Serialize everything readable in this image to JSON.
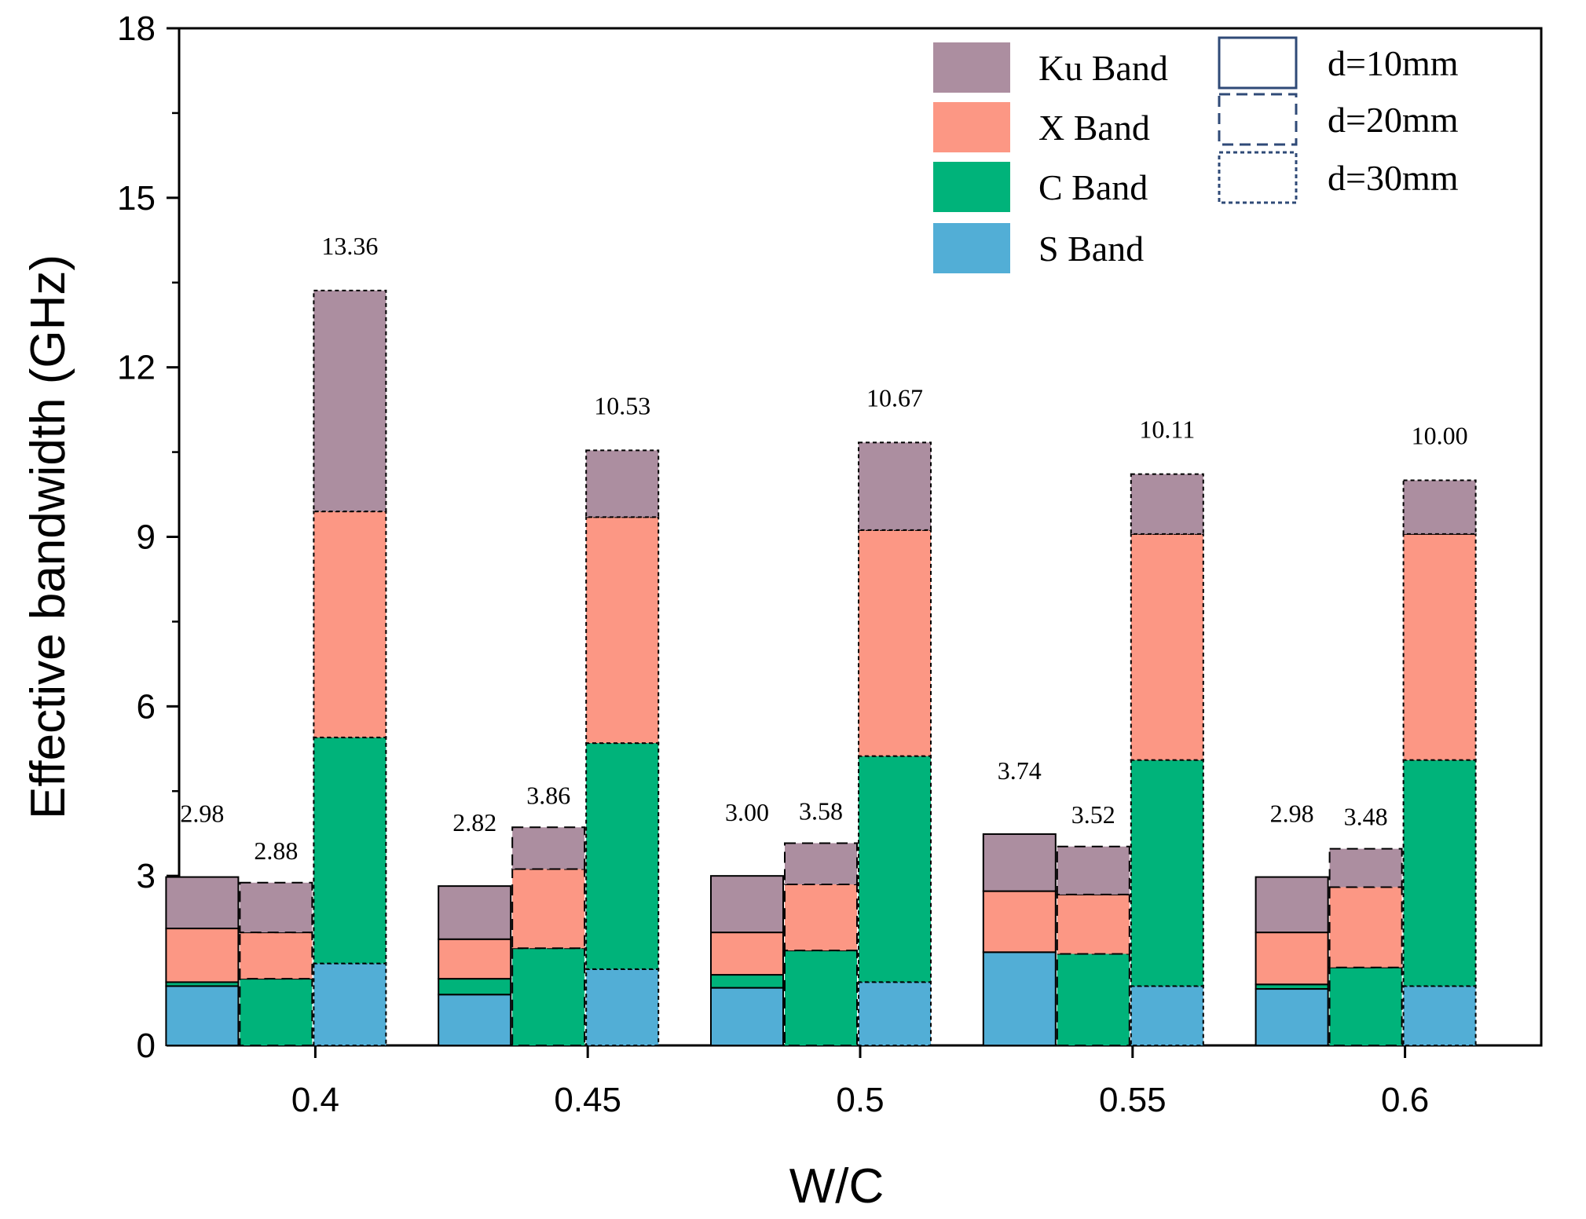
{
  "chart_data": {
    "type": "bar",
    "subtype": "grouped-stacked",
    "title": "",
    "xlabel": "W/C",
    "ylabel": "Effective bandwidth (GHz)",
    "ylim": [
      0,
      18
    ],
    "yticks": [
      0,
      3,
      6,
      9,
      12,
      15,
      18
    ],
    "categories": [
      "0.4",
      "0.45",
      "0.5",
      "0.55",
      "0.6"
    ],
    "stack_order": [
      "S Band",
      "C Band",
      "X Band",
      "Ku Band"
    ],
    "band_colors": {
      "S Band": "#52AED6",
      "C Band": "#00B37A",
      "X Band": "#FC9784",
      "Ku Band": "#AC8EA0"
    },
    "groups": [
      {
        "name": "d=10mm",
        "line_style": "solid"
      },
      {
        "name": "d=20mm",
        "line_style": "dashed"
      },
      {
        "name": "d=30mm",
        "line_style": "dotted"
      }
    ],
    "bars": [
      {
        "category": "0.4",
        "group": "d=10mm",
        "total": "2.98",
        "segments": {
          "S Band": 1.05,
          "C Band": 0.07,
          "X Band": 0.95,
          "Ku Band": 0.91
        }
      },
      {
        "category": "0.4",
        "group": "d=20mm",
        "total": "2.88",
        "segments": {
          "S Band": 0.0,
          "C Band": 1.18,
          "X Band": 0.82,
          "Ku Band": 0.88
        }
      },
      {
        "category": "0.4",
        "group": "d=30mm",
        "total": "13.36",
        "segments": {
          "S Band": 1.45,
          "C Band": 4.0,
          "X Band": 4.0,
          "Ku Band": 3.91
        }
      },
      {
        "category": "0.45",
        "group": "d=10mm",
        "total": "2.82",
        "segments": {
          "S Band": 0.9,
          "C Band": 0.28,
          "X Band": 0.7,
          "Ku Band": 0.94
        }
      },
      {
        "category": "0.45",
        "group": "d=20mm",
        "total": "3.86",
        "segments": {
          "S Band": 0.0,
          "C Band": 1.72,
          "X Band": 1.4,
          "Ku Band": 0.74
        }
      },
      {
        "category": "0.45",
        "group": "d=30mm",
        "total": "10.53",
        "segments": {
          "S Band": 1.35,
          "C Band": 4.0,
          "X Band": 4.0,
          "Ku Band": 1.18
        }
      },
      {
        "category": "0.5",
        "group": "d=10mm",
        "total": "3.00",
        "segments": {
          "S Band": 1.02,
          "C Band": 0.23,
          "X Band": 0.75,
          "Ku Band": 1.0
        }
      },
      {
        "category": "0.5",
        "group": "d=20mm",
        "total": "3.58",
        "segments": {
          "S Band": 0.0,
          "C Band": 1.68,
          "X Band": 1.17,
          "Ku Band": 0.73
        }
      },
      {
        "category": "0.5",
        "group": "d=30mm",
        "total": "10.67",
        "segments": {
          "S Band": 1.12,
          "C Band": 4.0,
          "X Band": 4.0,
          "Ku Band": 1.55
        }
      },
      {
        "category": "0.55",
        "group": "d=10mm",
        "total": "3.74",
        "segments": {
          "S Band": 1.65,
          "C Band": 0.0,
          "X Band": 1.08,
          "Ku Band": 1.01
        }
      },
      {
        "category": "0.55",
        "group": "d=20mm",
        "total": "3.52",
        "segments": {
          "S Band": 0.0,
          "C Band": 1.62,
          "X Band": 1.05,
          "Ku Band": 0.85
        }
      },
      {
        "category": "0.55",
        "group": "d=30mm",
        "total": "10.11",
        "segments": {
          "S Band": 1.05,
          "C Band": 4.0,
          "X Band": 4.0,
          "Ku Band": 1.06
        }
      },
      {
        "category": "0.6",
        "group": "d=10mm",
        "total": "2.98",
        "segments": {
          "S Band": 1.0,
          "C Band": 0.08,
          "X Band": 0.92,
          "Ku Band": 0.98
        }
      },
      {
        "category": "0.6",
        "group": "d=20mm",
        "total": "3.48",
        "segments": {
          "S Band": 0.0,
          "C Band": 1.38,
          "X Band": 1.42,
          "Ku Band": 0.68
        }
      },
      {
        "category": "0.6",
        "group": "d=30mm",
        "total": "10.00",
        "segments": {
          "S Band": 1.05,
          "C Band": 4.0,
          "X Band": 4.0,
          "Ku Band": 0.95
        }
      }
    ],
    "legend": {
      "position": "top-right",
      "bands": [
        "Ku Band",
        "X Band",
        "C Band",
        "S Band"
      ],
      "thickness": [
        "d=10mm",
        "d=20mm",
        "d=30mm"
      ]
    }
  }
}
